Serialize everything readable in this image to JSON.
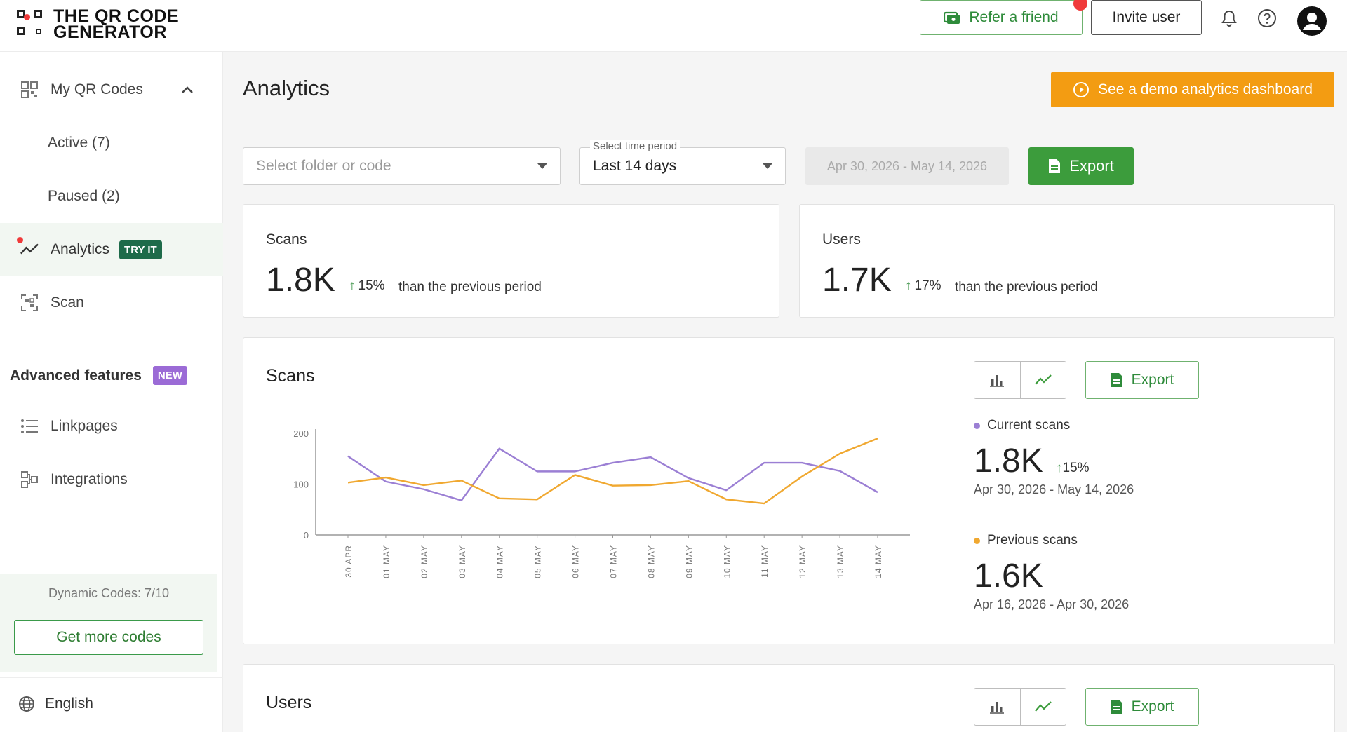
{
  "header": {
    "logo_line1": "THE QR CODE",
    "logo_line2": "GENERATOR",
    "refer_label": "Refer a friend",
    "invite_label": "Invite user"
  },
  "sidebar": {
    "my_codes": "My QR Codes",
    "active": "Active (7)",
    "paused": "Paused (2)",
    "analytics": "Analytics",
    "analytics_badge": "TRY IT",
    "scan": "Scan",
    "advanced_title": "Advanced features",
    "advanced_badge": "NEW",
    "linkpages": "Linkpages",
    "integrations": "Integrations",
    "quota": "Dynamic Codes: 7/10",
    "more_button": "Get more codes",
    "language": "English"
  },
  "main": {
    "title": "Analytics",
    "demo_button": "See a demo analytics dashboard",
    "folder_placeholder": "Select folder or code",
    "period_label": "Select time period",
    "period_value": "Last 14 days",
    "date_range": "Apr 30, 2026 - May 14, 2026",
    "export_label": "Export"
  },
  "summary": {
    "scans_label": "Scans",
    "scans_value": "1.8K",
    "scans_delta": "15%",
    "users_label": "Users",
    "users_value": "1.7K",
    "users_delta": "17%",
    "compare_text": "than the previous period"
  },
  "scans_chart_card": {
    "title": "Scans",
    "export_label": "Export",
    "current_label": "Current scans",
    "current_value": "1.8K",
    "current_delta": "15%",
    "current_range": "Apr 30, 2026 - May 14, 2026",
    "previous_label": "Previous scans",
    "previous_value": "1.6K",
    "previous_range": "Apr 16, 2026 - Apr 30, 2026"
  },
  "users_chart_card": {
    "title": "Users",
    "export_label": "Export"
  },
  "colors": {
    "current": "#9b7fd4",
    "previous": "#f0a830",
    "green": "#3c9c3c",
    "orange": "#f39c12"
  },
  "chart_data": {
    "type": "line",
    "categories": [
      "30 APR",
      "01 MAY",
      "02 MAY",
      "03 MAY",
      "04 MAY",
      "05 MAY",
      "06 MAY",
      "07 MAY",
      "08 MAY",
      "09 MAY",
      "10 MAY",
      "11 MAY",
      "12 MAY",
      "13 MAY",
      "14 MAY"
    ],
    "series": [
      {
        "name": "Current scans",
        "values": [
          155,
          105,
          90,
          68,
          170,
          125,
          125,
          142,
          153,
          112,
          88,
          142,
          142,
          126,
          84
        ]
      },
      {
        "name": "Previous scans",
        "values": [
          103,
          113,
          98,
          107,
          72,
          70,
          118,
          97,
          98,
          106,
          70,
          62,
          115,
          160,
          190
        ]
      }
    ],
    "yticks": [
      0,
      100,
      200
    ],
    "ylim": [
      0,
      200
    ],
    "grid": false
  }
}
